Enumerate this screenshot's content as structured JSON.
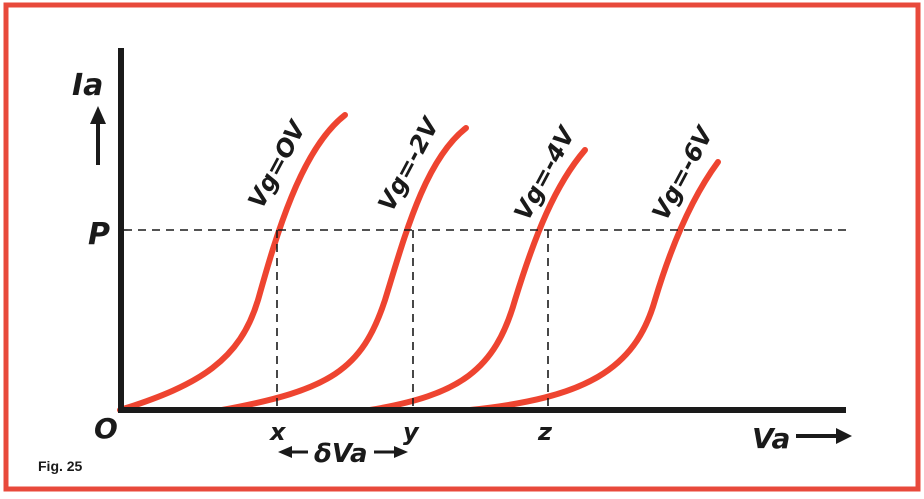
{
  "figure": {
    "caption": "Fig. 25",
    "y_axis_label": "Ia",
    "x_axis_label": "Va",
    "origin_label": "O",
    "p_label": "P",
    "x_points": [
      "x",
      "y",
      "z"
    ],
    "delta_label": "δVa",
    "curves": [
      {
        "label": "Vg=OV"
      },
      {
        "label": "Vg=-2V"
      },
      {
        "label": "Vg=-4V"
      },
      {
        "label": "Vg=-6V"
      }
    ],
    "colors": {
      "frame": "#e8493b",
      "curve": "#ee4430",
      "axis": "#1a1a1a",
      "dashed": "#1a1a1a",
      "background": "#ffffff"
    }
  }
}
